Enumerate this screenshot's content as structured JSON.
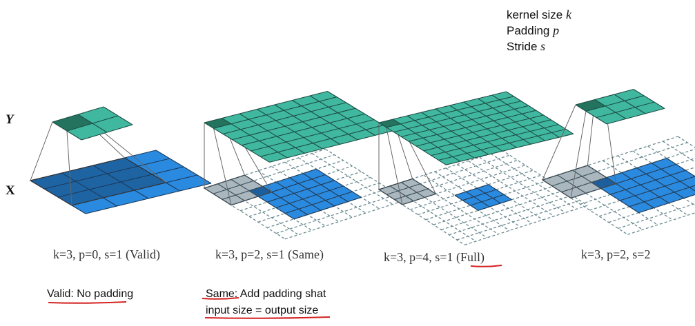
{
  "legend": {
    "kernel_text": "kernel size ",
    "kernel_symbol": "k",
    "padding_text": "Padding ",
    "padding_symbol": "p",
    "stride_text": "Stride ",
    "stride_symbol": "s"
  },
  "labels": {
    "output": "Y",
    "input": "X"
  },
  "panels": [
    {
      "caption": "k=3, p=0, s=1 (Valid)"
    },
    {
      "caption": "k=3, p=2, s=1 (Same)"
    },
    {
      "caption_main": "k=3, p=4, s=1 ",
      "caption_highlight": "(Full)"
    },
    {
      "caption": "k=3, p=2, s=2"
    }
  ],
  "notes": {
    "valid": "Valid: No padding",
    "same_line1": "Same: Add padding shat",
    "same_line2": "input size = output size"
  },
  "colors": {
    "teal": "#40b8a0",
    "teal_dark": "#24735f",
    "blue": "#2a8ae0",
    "blue_dark": "#1d5f9c",
    "grey": "#aab7bf",
    "underline": "#d42020"
  }
}
